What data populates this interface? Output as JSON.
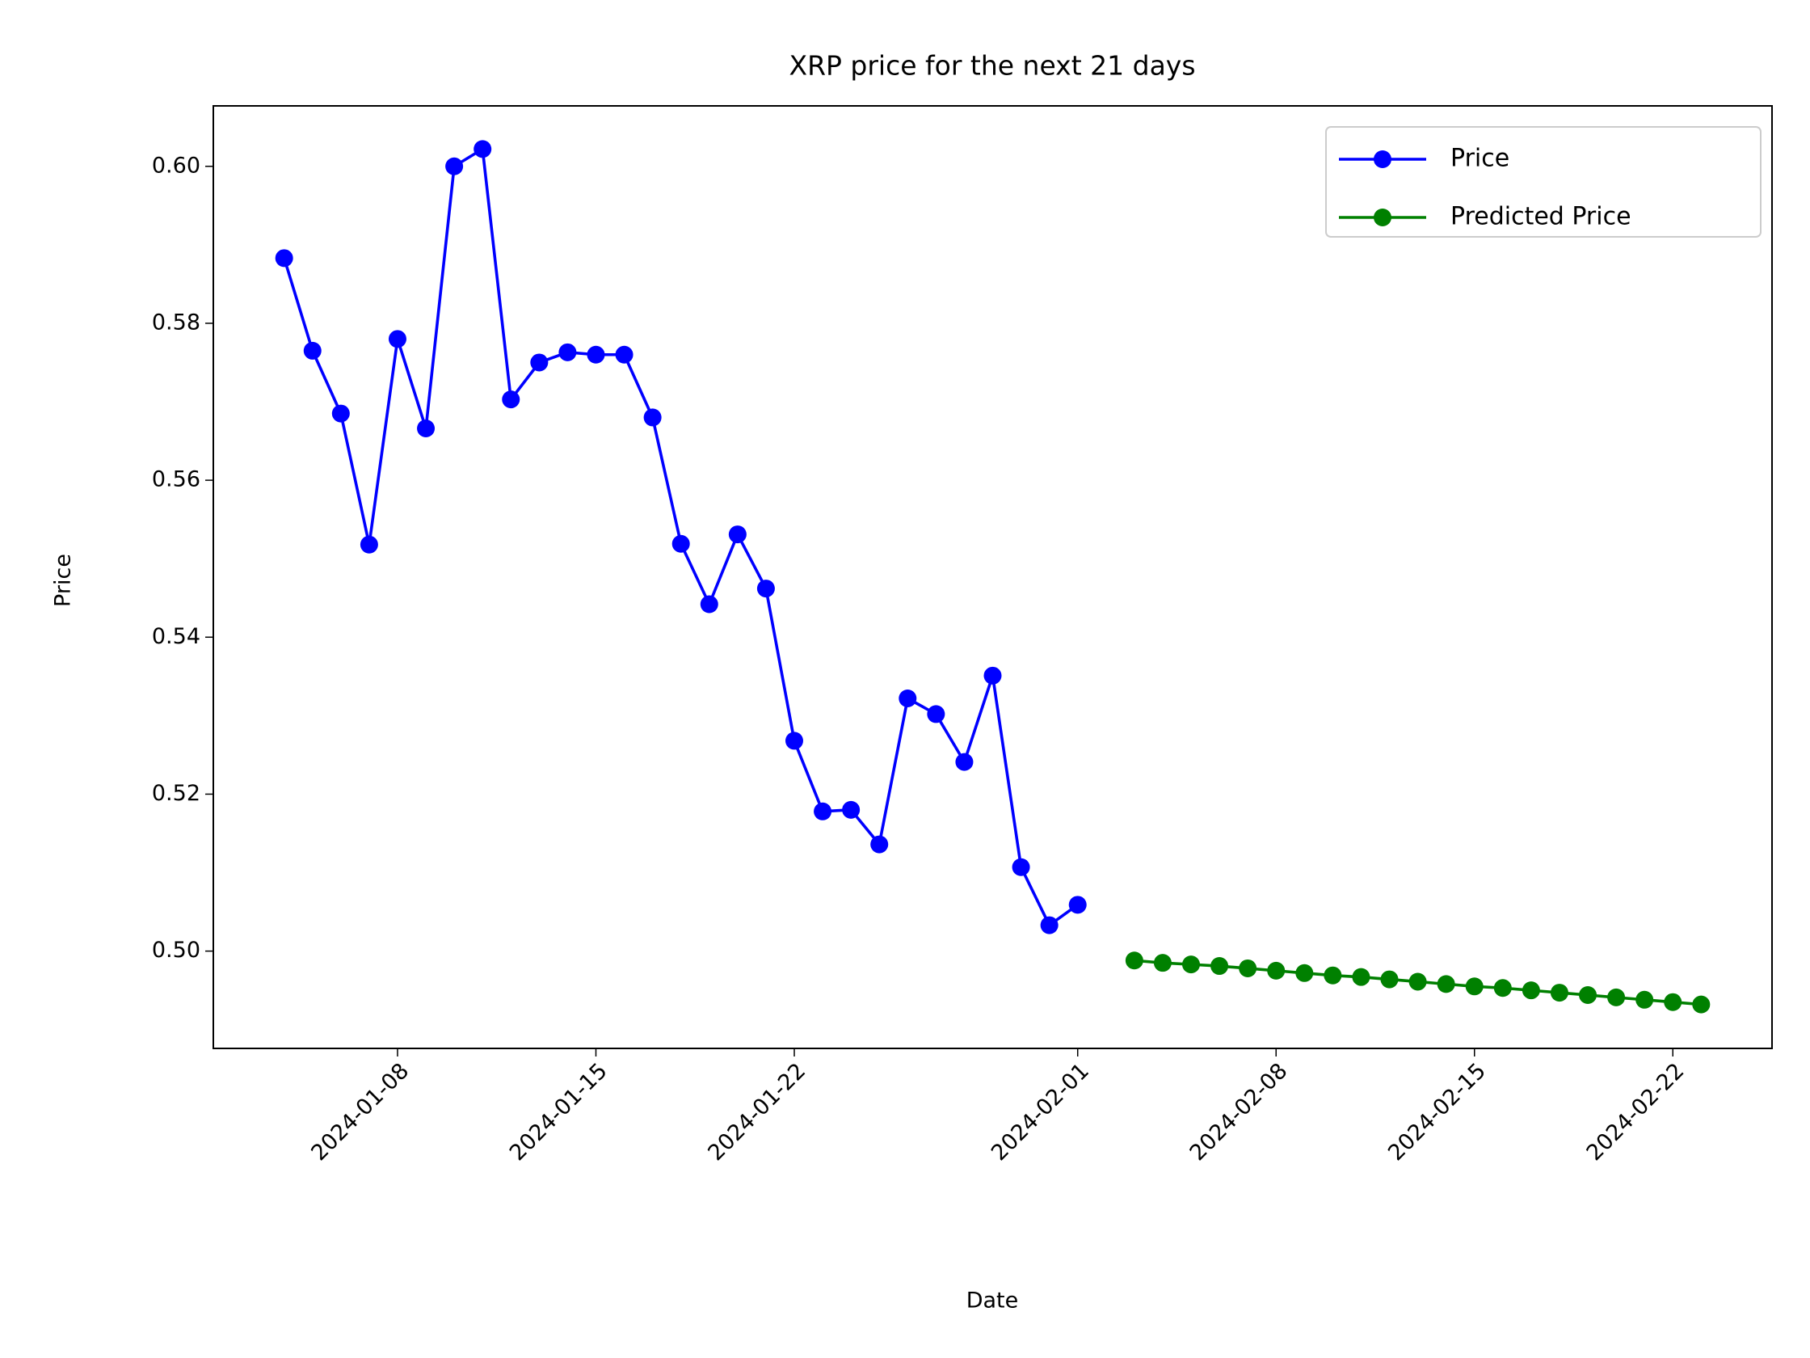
{
  "chart_data": {
    "type": "line",
    "title": "XRP price for the next 21 days",
    "xlabel": "Date",
    "ylabel": "Price",
    "series": [
      {
        "name": "Price",
        "color": "#0000ff",
        "x": [
          "2024-01-04",
          "2024-01-05",
          "2024-01-06",
          "2024-01-07",
          "2024-01-08",
          "2024-01-09",
          "2024-01-10",
          "2024-01-11",
          "2024-01-12",
          "2024-01-13",
          "2024-01-14",
          "2024-01-15",
          "2024-01-16",
          "2024-01-17",
          "2024-01-18",
          "2024-01-19",
          "2024-01-20",
          "2024-01-21",
          "2024-01-22",
          "2024-01-23",
          "2024-01-24",
          "2024-01-25",
          "2024-01-26",
          "2024-01-27",
          "2024-01-28",
          "2024-01-29",
          "2024-01-30",
          "2024-01-31",
          "2024-02-01"
        ],
        "values": [
          0.5883,
          0.5765,
          0.5685,
          0.5518,
          0.578,
          0.5666,
          0.6,
          0.6022,
          0.5703,
          0.575,
          0.5763,
          0.576,
          0.576,
          0.568,
          0.5519,
          0.5442,
          0.5531,
          0.5462,
          0.5268,
          0.5178,
          0.518,
          0.5136,
          0.5322,
          0.5302,
          0.5241,
          0.5351,
          0.5107,
          0.5033,
          0.5059
        ]
      },
      {
        "name": "Predicted Price",
        "color": "#008000",
        "x": [
          "2024-02-03",
          "2024-02-04",
          "2024-02-05",
          "2024-02-06",
          "2024-02-07",
          "2024-02-08",
          "2024-02-09",
          "2024-02-10",
          "2024-02-11",
          "2024-02-12",
          "2024-02-13",
          "2024-02-14",
          "2024-02-15",
          "2024-02-16",
          "2024-02-17",
          "2024-02-18",
          "2024-02-19",
          "2024-02-20",
          "2024-02-21",
          "2024-02-22",
          "2024-02-23"
        ],
        "values": [
          0.4988,
          0.4985,
          0.4983,
          0.4981,
          0.4978,
          0.4975,
          0.4972,
          0.4969,
          0.4967,
          0.4964,
          0.4961,
          0.4958,
          0.4955,
          0.4953,
          0.495,
          0.4947,
          0.4944,
          0.4941,
          0.4938,
          0.4935,
          0.4932
        ]
      }
    ],
    "xticks": [
      "2024-01-08",
      "2024-01-15",
      "2024-01-22",
      "2024-02-01",
      "2024-02-08",
      "2024-02-15",
      "2024-02-22"
    ],
    "ylim": [
      0.4876,
      0.6077
    ],
    "yticks": [
      {
        "value": 0.5,
        "label": "0.50"
      },
      0.52,
      0.54,
      0.56,
      0.58,
      {
        "value": 0.6,
        "label": "0.60"
      }
    ],
    "legend": "upper right"
  }
}
